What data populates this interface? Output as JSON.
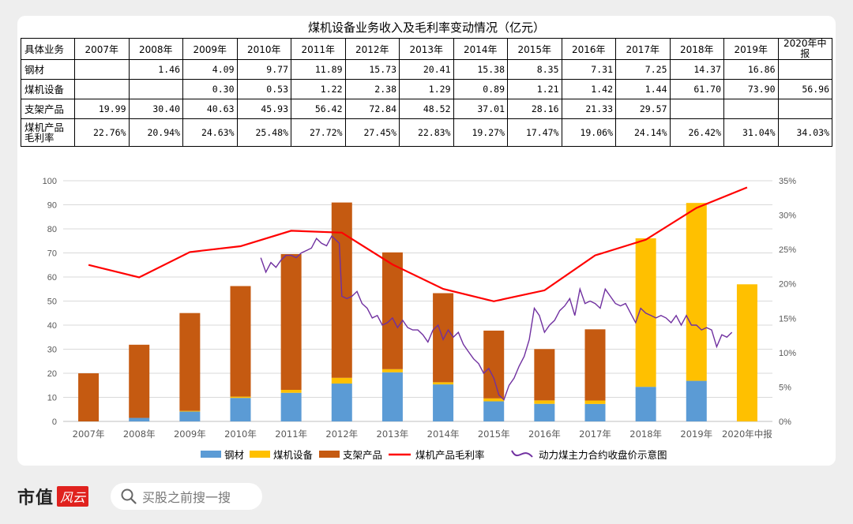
{
  "table": {
    "title": "煤机设备业务收入及毛利率变动情况（亿元）",
    "header_label": "具体业务",
    "years": [
      "2007年",
      "2008年",
      "2009年",
      "2010年",
      "2011年",
      "2012年",
      "2013年",
      "2014年",
      "2015年",
      "2016年",
      "2017年",
      "2018年",
      "2019年",
      "2020年中报"
    ],
    "rows": [
      {
        "label": "钢材",
        "values": [
          "",
          "1.46",
          "4.09",
          "9.77",
          "11.89",
          "15.73",
          "20.41",
          "15.38",
          "8.35",
          "7.31",
          "7.25",
          "14.37",
          "16.86",
          ""
        ]
      },
      {
        "label": "煤机设备",
        "values": [
          "",
          "",
          "0.30",
          "0.53",
          "1.22",
          "2.38",
          "1.29",
          "0.89",
          "1.21",
          "1.42",
          "1.44",
          "61.70",
          "73.90",
          "56.96"
        ]
      },
      {
        "label": "支架产品",
        "values": [
          "19.99",
          "30.40",
          "40.63",
          "45.93",
          "56.42",
          "72.84",
          "48.52",
          "37.01",
          "28.16",
          "21.33",
          "29.57",
          "",
          "",
          ""
        ]
      },
      {
        "label": "煤机产品毛利率",
        "values": [
          "22.76%",
          "20.94%",
          "24.63%",
          "25.48%",
          "27.72%",
          "27.45%",
          "22.83%",
          "19.27%",
          "17.47%",
          "19.06%",
          "24.14%",
          "26.42%",
          "31.04%",
          "34.03%"
        ]
      }
    ]
  },
  "chart_data": {
    "type": "bar",
    "stacked": true,
    "categories": [
      "2007年",
      "2008年",
      "2009年",
      "2010年",
      "2011年",
      "2012年",
      "2013年",
      "2014年",
      "2015年",
      "2016年",
      "2017年",
      "2018年",
      "2019年",
      "2020年中报"
    ],
    "series": [
      {
        "name": "钢材",
        "color": "#5b9bd5",
        "values": [
          0,
          1.46,
          4.09,
          9.77,
          11.89,
          15.73,
          20.41,
          15.38,
          8.35,
          7.31,
          7.25,
          14.37,
          16.86,
          0
        ]
      },
      {
        "name": "煤机设备",
        "color": "#ffc000",
        "values": [
          0,
          0,
          0.3,
          0.53,
          1.22,
          2.38,
          1.29,
          0.89,
          1.21,
          1.42,
          1.44,
          61.7,
          73.9,
          56.96
        ]
      },
      {
        "name": "支架产品",
        "color": "#c55a11",
        "values": [
          19.99,
          30.4,
          40.63,
          45.93,
          56.42,
          72.84,
          48.52,
          37.01,
          28.16,
          21.33,
          29.57,
          0,
          0,
          0
        ]
      }
    ],
    "line": {
      "name": "煤机产品毛利率",
      "color": "#ff0000",
      "axis": "right",
      "values": [
        22.76,
        20.94,
        24.63,
        25.48,
        27.72,
        27.45,
        22.83,
        19.27,
        17.47,
        19.06,
        24.14,
        26.42,
        31.04,
        34.03
      ]
    },
    "price_line": {
      "name": "动力煤主力合约收盘价示意图",
      "color": "#7030a0",
      "x": [
        3.9,
        4.0,
        4.1,
        4.2,
        4.3,
        4.4,
        4.5,
        4.6,
        4.7,
        4.8,
        4.9,
        5.0,
        5.1,
        5.2,
        5.3,
        5.4,
        5.45,
        5.5,
        5.6,
        5.7,
        5.8,
        5.9,
        6.0,
        6.1,
        6.2,
        6.3,
        6.4,
        6.5,
        6.6,
        6.7,
        6.8,
        6.9,
        7.0,
        7.1,
        7.2,
        7.3,
        7.4,
        7.5,
        7.6,
        7.7,
        7.8,
        7.9,
        8.0,
        8.1,
        8.2,
        8.3,
        8.4,
        8.5,
        8.6,
        8.7,
        8.8,
        8.9,
        9.0,
        9.1,
        9.2,
        9.3,
        9.4,
        9.5,
        9.6,
        9.7,
        9.8,
        9.9,
        10.0,
        10.1,
        10.2,
        10.3,
        10.4,
        10.5,
        10.6,
        10.7,
        10.8,
        10.9,
        11.0,
        11.1,
        11.2,
        11.3,
        11.4,
        11.5,
        11.6,
        11.7,
        11.8,
        11.9,
        12.0,
        12.1,
        12.2,
        12.3,
        12.4,
        12.5,
        12.6,
        12.7,
        12.8,
        12.9,
        13.0,
        13.1,
        13.2
      ],
      "y": [
        68,
        62,
        66,
        64,
        67,
        69,
        69,
        68,
        70,
        71,
        72,
        76,
        74,
        73,
        77,
        75,
        74,
        52,
        51,
        52,
        54,
        49,
        47,
        43,
        44,
        40,
        41,
        43,
        39,
        42,
        39,
        38,
        38,
        36,
        33,
        38,
        40,
        34,
        38,
        35,
        37,
        32,
        29,
        26,
        24,
        20,
        22,
        18,
        11,
        9,
        15,
        18,
        23,
        27,
        34,
        47,
        44,
        37,
        40,
        42,
        46,
        48,
        51,
        44,
        55,
        49,
        50,
        49,
        47,
        55,
        52,
        49,
        48,
        49,
        45,
        41,
        47,
        45,
        44,
        43,
        44,
        43,
        41,
        44,
        40,
        44,
        40,
        40,
        38,
        39,
        38,
        31,
        36,
        35,
        37
      ]
    },
    "yleft": {
      "ticks": [
        0,
        10,
        20,
        30,
        40,
        50,
        60,
        70,
        80,
        90,
        100
      ],
      "ylim": [
        0,
        100
      ]
    },
    "yright": {
      "ticks": [
        "0%",
        "5%",
        "10%",
        "15%",
        "20%",
        "25%",
        "30%",
        "35%"
      ],
      "ylim": [
        0,
        35
      ]
    }
  },
  "footer": {
    "logo_text": "市值",
    "logo_badge": "风云",
    "search_placeholder": "买股之前搜一搜"
  }
}
